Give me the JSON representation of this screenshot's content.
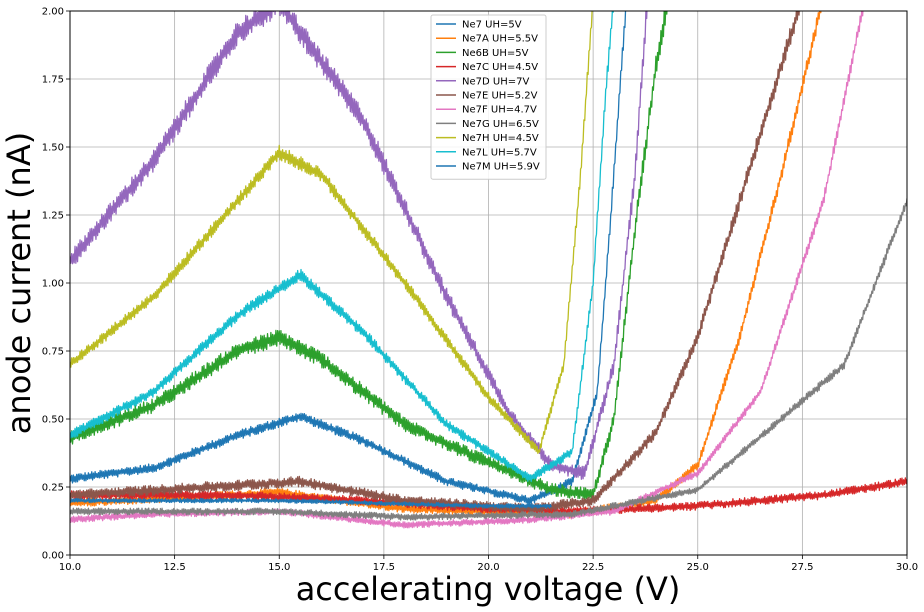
{
  "chart_data": {
    "type": "line",
    "title": "",
    "xlabel": "accelerating voltage (V)",
    "ylabel": "anode current (nA)",
    "xlim": [
      10.0,
      30.0
    ],
    "ylim": [
      0.0,
      2.0
    ],
    "xticks": [
      "10.0",
      "12.5",
      "15.0",
      "17.5",
      "20.0",
      "22.5",
      "25.0",
      "27.5",
      "30.0"
    ],
    "yticks": [
      "0.00",
      "0.25",
      "0.50",
      "0.75",
      "1.00",
      "1.25",
      "1.50",
      "1.75",
      "2.00"
    ],
    "grid": true,
    "legend_position": "top-center",
    "series": [
      {
        "name": "Ne7 UH=5V",
        "color": "#1f77b4",
        "noise": 0.01,
        "points": [
          [
            10,
            0.28
          ],
          [
            12,
            0.32
          ],
          [
            14,
            0.44
          ],
          [
            15.5,
            0.51
          ],
          [
            17,
            0.42
          ],
          [
            19,
            0.27
          ],
          [
            21,
            0.2
          ],
          [
            22,
            0.27
          ],
          [
            22.6,
            0.6
          ],
          [
            22.9,
            1.2
          ],
          [
            23.3,
            2.05
          ]
        ]
      },
      {
        "name": "Ne7A UH=5.5V",
        "color": "#ff7f0e",
        "noise": 0.01,
        "points": [
          [
            10,
            0.19
          ],
          [
            15,
            0.23
          ],
          [
            18,
            0.17
          ],
          [
            22,
            0.15
          ],
          [
            24,
            0.2
          ],
          [
            25,
            0.33
          ],
          [
            26,
            0.8
          ],
          [
            27,
            1.4
          ],
          [
            28,
            2.05
          ]
        ]
      },
      {
        "name": "Ne6B UH=5V",
        "color": "#2ca02c",
        "noise": 0.015,
        "points": [
          [
            10,
            0.43
          ],
          [
            12,
            0.55
          ],
          [
            14,
            0.75
          ],
          [
            15,
            0.8
          ],
          [
            16,
            0.72
          ],
          [
            18,
            0.48
          ],
          [
            20,
            0.34
          ],
          [
            21.5,
            0.24
          ],
          [
            22.5,
            0.22
          ],
          [
            23,
            0.5
          ],
          [
            23.5,
            1.2
          ],
          [
            24,
            1.8
          ],
          [
            24.3,
            2.05
          ]
        ]
      },
      {
        "name": "Ne7C UH=4.5V",
        "color": "#d62728",
        "noise": 0.01,
        "points": [
          [
            10,
            0.22
          ],
          [
            14,
            0.22
          ],
          [
            17,
            0.2
          ],
          [
            20,
            0.17
          ],
          [
            22,
            0.16
          ],
          [
            25,
            0.18
          ],
          [
            28,
            0.22
          ],
          [
            30,
            0.27
          ]
        ]
      },
      {
        "name": "Ne7D UH=7V",
        "color": "#9467bd",
        "noise": 0.015,
        "points": [
          [
            10,
            1.08
          ],
          [
            12,
            1.45
          ],
          [
            14,
            1.92
          ],
          [
            15,
            2.03
          ],
          [
            17,
            1.6
          ],
          [
            19,
            0.95
          ],
          [
            20.5,
            0.52
          ],
          [
            21.5,
            0.33
          ],
          [
            22.3,
            0.3
          ],
          [
            23,
            0.7
          ],
          [
            23.5,
            1.4
          ],
          [
            23.8,
            2.05
          ]
        ]
      },
      {
        "name": "Ne7E UH=5.2V",
        "color": "#8c564b",
        "noise": 0.012,
        "points": [
          [
            10,
            0.22
          ],
          [
            15.5,
            0.27
          ],
          [
            18,
            0.2
          ],
          [
            21,
            0.17
          ],
          [
            22.5,
            0.2
          ],
          [
            24,
            0.45
          ],
          [
            25,
            0.8
          ],
          [
            26,
            1.3
          ],
          [
            27,
            1.8
          ],
          [
            27.5,
            2.05
          ]
        ]
      },
      {
        "name": "Ne7F UH=4.7V",
        "color": "#e377c2",
        "noise": 0.008,
        "points": [
          [
            10,
            0.13
          ],
          [
            12,
            0.15
          ],
          [
            15,
            0.16
          ],
          [
            18,
            0.11
          ],
          [
            21,
            0.13
          ],
          [
            23,
            0.16
          ],
          [
            25,
            0.3
          ],
          [
            26.5,
            0.6
          ],
          [
            28,
            1.3
          ],
          [
            29,
            2.05
          ]
        ]
      },
      {
        "name": "Ne7G UH=6.5V",
        "color": "#7f7f7f",
        "noise": 0.008,
        "points": [
          [
            10,
            0.16
          ],
          [
            15,
            0.16
          ],
          [
            18,
            0.14
          ],
          [
            22,
            0.15
          ],
          [
            25,
            0.24
          ],
          [
            27,
            0.5
          ],
          [
            28.5,
            0.7
          ],
          [
            30,
            1.3
          ]
        ]
      },
      {
        "name": "Ne7H UH=4.5V",
        "color": "#bcbd22",
        "noise": 0.01,
        "points": [
          [
            10,
            0.7
          ],
          [
            12,
            0.95
          ],
          [
            14,
            1.3
          ],
          [
            15,
            1.48
          ],
          [
            16,
            1.4
          ],
          [
            18,
            1.0
          ],
          [
            20,
            0.58
          ],
          [
            21.2,
            0.38
          ],
          [
            21.8,
            0.7
          ],
          [
            22.2,
            1.4
          ],
          [
            22.5,
            2.05
          ]
        ]
      },
      {
        "name": "Ne7L UH=5.7V",
        "color": "#17becf",
        "noise": 0.01,
        "points": [
          [
            10,
            0.44
          ],
          [
            12,
            0.6
          ],
          [
            14,
            0.88
          ],
          [
            15.5,
            1.03
          ],
          [
            17,
            0.82
          ],
          [
            19,
            0.48
          ],
          [
            21,
            0.28
          ],
          [
            22,
            0.38
          ],
          [
            22.5,
            1.0
          ],
          [
            22.8,
            1.7
          ],
          [
            23,
            2.05
          ]
        ]
      },
      {
        "name": "Ne7M UH=5.9V",
        "color": "#1f77b4",
        "noise": 0.005,
        "points": [
          [
            10,
            0.2
          ],
          [
            15,
            0.2
          ],
          [
            20,
            0.18
          ],
          [
            21.5,
            0.18
          ]
        ]
      }
    ]
  }
}
